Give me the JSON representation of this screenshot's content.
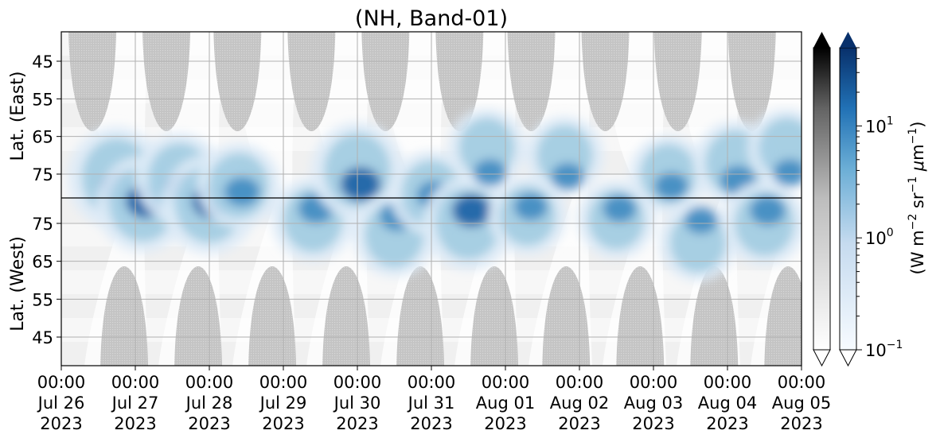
{
  "chart_data": {
    "type": "heatmap",
    "title": "(NH, Band-01)",
    "ylabel_top": "Lat. (East)",
    "ylabel_bottom": "Lat. (West)",
    "y_ticks_top": [
      "45",
      "55",
      "65",
      "75"
    ],
    "y_ticks_bottom": [
      "75",
      "65",
      "55",
      "45"
    ],
    "x_ticks": [
      {
        "time": "00:00",
        "date": "Jul 26",
        "year": "2023"
      },
      {
        "time": "00:00",
        "date": "Jul 27",
        "year": "2023"
      },
      {
        "time": "00:00",
        "date": "Jul 28",
        "year": "2023"
      },
      {
        "time": "00:00",
        "date": "Jul 29",
        "year": "2023"
      },
      {
        "time": "00:00",
        "date": "Jul 30",
        "year": "2023"
      },
      {
        "time": "00:00",
        "date": "Jul 31",
        "year": "2023"
      },
      {
        "time": "00:00",
        "date": "Aug 01",
        "year": "2023"
      },
      {
        "time": "00:00",
        "date": "Aug 02",
        "year": "2023"
      },
      {
        "time": "00:00",
        "date": "Aug 03",
        "year": "2023"
      },
      {
        "time": "00:00",
        "date": "Aug 04",
        "year": "2023"
      },
      {
        "time": "00:00",
        "date": "Aug 05",
        "year": "2023"
      }
    ],
    "colorbar": {
      "label": "(W m$^{-2}$ sr$^{-1}$ $\\mu$m$^{-1}$)",
      "scale": "log",
      "range": [
        0.1,
        50
      ],
      "ticks": [
        {
          "base": "10",
          "exp": "−1"
        },
        {
          "base": "10",
          "exp": "0"
        },
        {
          "base": "10",
          "exp": "1"
        }
      ],
      "colormaps": [
        "Greys",
        "Blues"
      ],
      "extend": "both"
    },
    "grid": true,
    "blue_patches": [
      {
        "day": 0.75,
        "lat": 76,
        "amp": 1.0
      },
      {
        "day": 1.1,
        "lat": 80,
        "amp": 0.9
      },
      {
        "day": 1.6,
        "lat": 76,
        "amp": 0.8
      },
      {
        "day": 2.0,
        "lat": 80,
        "amp": 0.95
      },
      {
        "day": 2.4,
        "lat": 78,
        "amp": 0.7
      },
      {
        "day": 3.4,
        "lat": 76,
        "amp": 0.7
      },
      {
        "day": 4.0,
        "lat": 74,
        "amp": 0.9
      },
      {
        "day": 4.5,
        "lat": 72,
        "amp": 0.7
      },
      {
        "day": 5.0,
        "lat": 80,
        "amp": 0.7
      },
      {
        "day": 5.5,
        "lat": 75,
        "amp": 0.85
      },
      {
        "day": 5.75,
        "lat": 68,
        "amp": 0.6
      },
      {
        "day": 6.3,
        "lat": 77,
        "amp": 0.6
      },
      {
        "day": 6.8,
        "lat": 70,
        "amp": 0.6
      },
      {
        "day": 7.5,
        "lat": 76,
        "amp": 0.6
      },
      {
        "day": 8.2,
        "lat": 75,
        "amp": 0.6
      },
      {
        "day": 8.6,
        "lat": 70,
        "amp": 0.6
      },
      {
        "day": 9.1,
        "lat": 72,
        "amp": 0.7
      },
      {
        "day": 9.5,
        "lat": 75,
        "amp": 0.7
      },
      {
        "day": 9.8,
        "lat": 68,
        "amp": 0.6
      }
    ]
  }
}
